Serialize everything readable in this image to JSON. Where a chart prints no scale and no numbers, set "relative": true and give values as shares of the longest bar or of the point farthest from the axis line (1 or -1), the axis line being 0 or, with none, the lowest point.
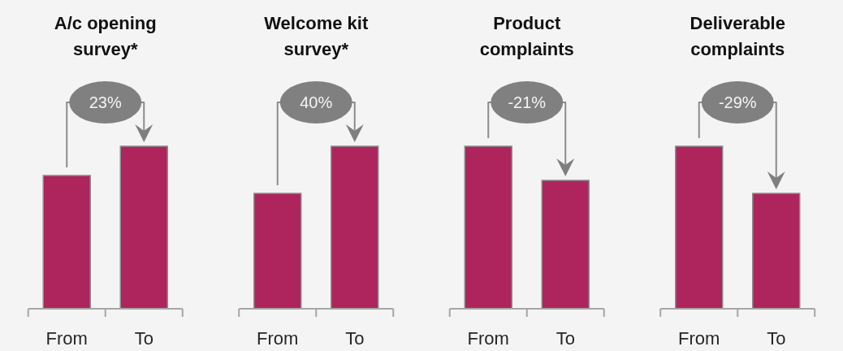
{
  "chart_data": [
    {
      "type": "bar",
      "title": "A/c opening survey*",
      "categories": [
        "From",
        "To"
      ],
      "values": [
        0.82,
        1
      ],
      "color": "#ad255c",
      "relative": true,
      "annotations": [
        "23%"
      ]
    },
    {
      "type": "bar",
      "title": "Welcome kit survey*",
      "categories": [
        "From",
        "To"
      ],
      "values": [
        0.71,
        1
      ],
      "color": "#ad255c",
      "relative": true,
      "annotations": [
        "40%"
      ]
    },
    {
      "type": "bar",
      "title": "Product complaints",
      "categories": [
        "From",
        "To"
      ],
      "values": [
        1,
        0.79
      ],
      "color": "#ad255c",
      "relative": true,
      "annotations": [
        "-21%"
      ]
    },
    {
      "type": "bar",
      "title": "Deliverable complaints",
      "categories": [
        "From",
        "To"
      ],
      "values": [
        1,
        0.71
      ],
      "color": "#ad255c",
      "relative": true,
      "annotations": [
        "-29%"
      ]
    }
  ]
}
